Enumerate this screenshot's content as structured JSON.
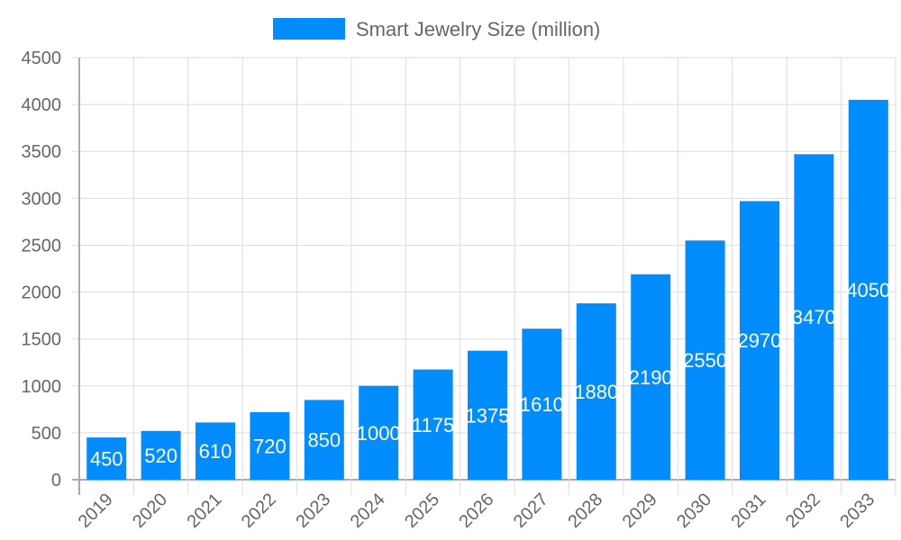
{
  "chart_data": {
    "type": "bar",
    "title": "",
    "xlabel": "",
    "ylabel": "",
    "categories": [
      "2019",
      "2020",
      "2021",
      "2022",
      "2023",
      "2024",
      "2025",
      "2026",
      "2027",
      "2028",
      "2029",
      "2030",
      "2031",
      "2032",
      "2033"
    ],
    "series": [
      {
        "name": "Smart Jewelry Size (million)",
        "values": [
          450,
          520,
          610,
          720,
          850,
          1000,
          1175,
          1375,
          1610,
          1880,
          2190,
          2550,
          2970,
          3470,
          4050
        ],
        "color": "#038cfc"
      }
    ],
    "ylim": [
      0,
      4500
    ],
    "yticks": [
      0,
      500,
      1000,
      1500,
      2000,
      2500,
      3000,
      3500,
      4000,
      4500
    ],
    "grid": true,
    "legend_position": "top",
    "data_labels": true
  }
}
